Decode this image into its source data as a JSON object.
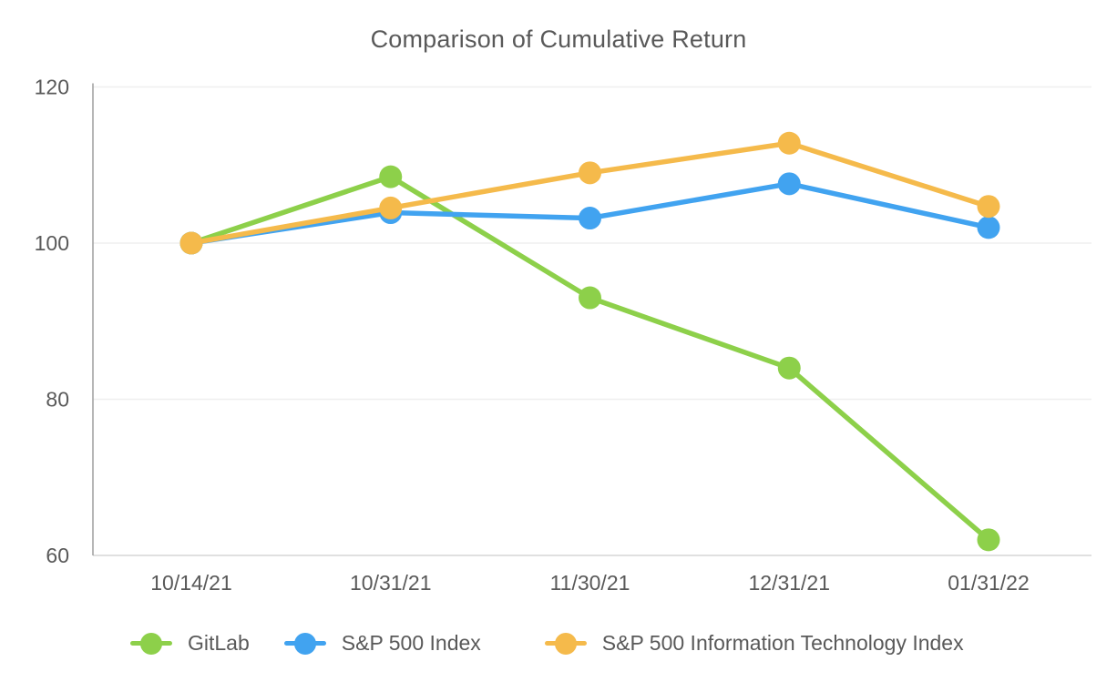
{
  "title": "Comparison of Cumulative Return",
  "style": {
    "text_color": "#595959",
    "gridline_color": "#EFEFEF",
    "axis_line_color": "#E0E0E0",
    "spine_color": "#9E9E9E",
    "background": "#FFFFFF"
  },
  "chart_data": {
    "type": "line",
    "title": "Comparison of Cumulative Return",
    "x": [
      "10/14/21",
      "10/31/21",
      "11/30/21",
      "12/31/21",
      "01/31/22"
    ],
    "series": [
      {
        "name": "GitLab",
        "color": "#8DD04A",
        "values": [
          100,
          108.5,
          93.0,
          84.0,
          62.0
        ]
      },
      {
        "name": "S&P 500 Index",
        "color": "#41A3F0",
        "values": [
          100,
          103.9,
          103.2,
          107.6,
          102.0
        ]
      },
      {
        "name": "S&P 500 Information Technology Index",
        "color": "#F5BA4B",
        "values": [
          100,
          104.5,
          109.0,
          112.8,
          104.7
        ]
      }
    ],
    "xlabel": "",
    "ylabel": "",
    "ylim": [
      60,
      120
    ],
    "yticks": [
      60,
      80,
      100,
      120
    ],
    "grid": true,
    "legend_position": "bottom-left",
    "marker": "circle",
    "marker_radius": 12.5,
    "line_width": 5.5
  }
}
